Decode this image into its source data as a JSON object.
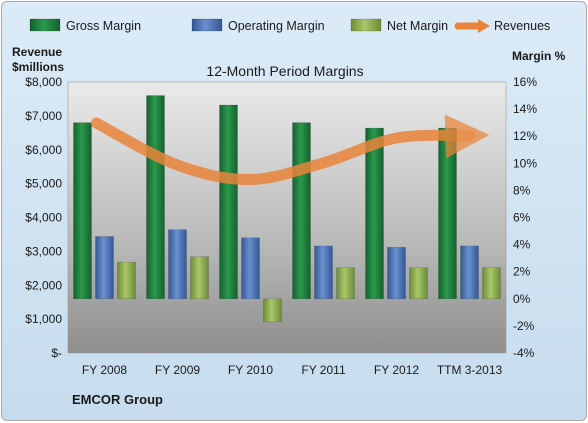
{
  "company": "EMCOR Group",
  "chart_data": {
    "type": "bar",
    "title": "12-Month Period Margins",
    "categories": [
      "FY 2008",
      "FY 2009",
      "FY 2010",
      "FY 2011",
      "FY 2012",
      "TTM 3-2013"
    ],
    "left_axis": {
      "label_line1": "Revenue",
      "label_line2": "$millions",
      "range": [
        0,
        8000
      ],
      "tick_labels": [
        "$-",
        "$1,000",
        "$2,000",
        "$3,000",
        "$4,000",
        "$5,000",
        "$6,000",
        "$7,000",
        "$8,000"
      ]
    },
    "right_axis": {
      "label": "Margin %",
      "range": [
        -4,
        16
      ],
      "tick_labels": [
        "-4%",
        "-2%",
        "0%",
        "2%",
        "4%",
        "6%",
        "8%",
        "10%",
        "12%",
        "14%",
        "16%"
      ]
    },
    "legend_position": "top",
    "series": [
      {
        "name": "Gross Margin",
        "kind": "bar",
        "axis": "right",
        "color": "#1f7a3e",
        "values": [
          13.0,
          15.0,
          14.3,
          13.0,
          12.6,
          12.6
        ]
      },
      {
        "name": "Operating Margin",
        "kind": "bar",
        "axis": "right",
        "color": "#4a72b8",
        "values": [
          4.6,
          5.1,
          4.5,
          3.9,
          3.8,
          3.9
        ]
      },
      {
        "name": "Net Margin",
        "kind": "bar",
        "axis": "right",
        "color": "#8db04e",
        "values": [
          2.7,
          3.1,
          -1.7,
          2.3,
          2.3,
          2.3
        ]
      },
      {
        "name": "Revenues",
        "kind": "line",
        "axis": "left",
        "color": "#e9853a",
        "values": [
          6785,
          5548,
          5121,
          5613,
          6347,
          6417
        ]
      }
    ],
    "gridlines": false
  }
}
